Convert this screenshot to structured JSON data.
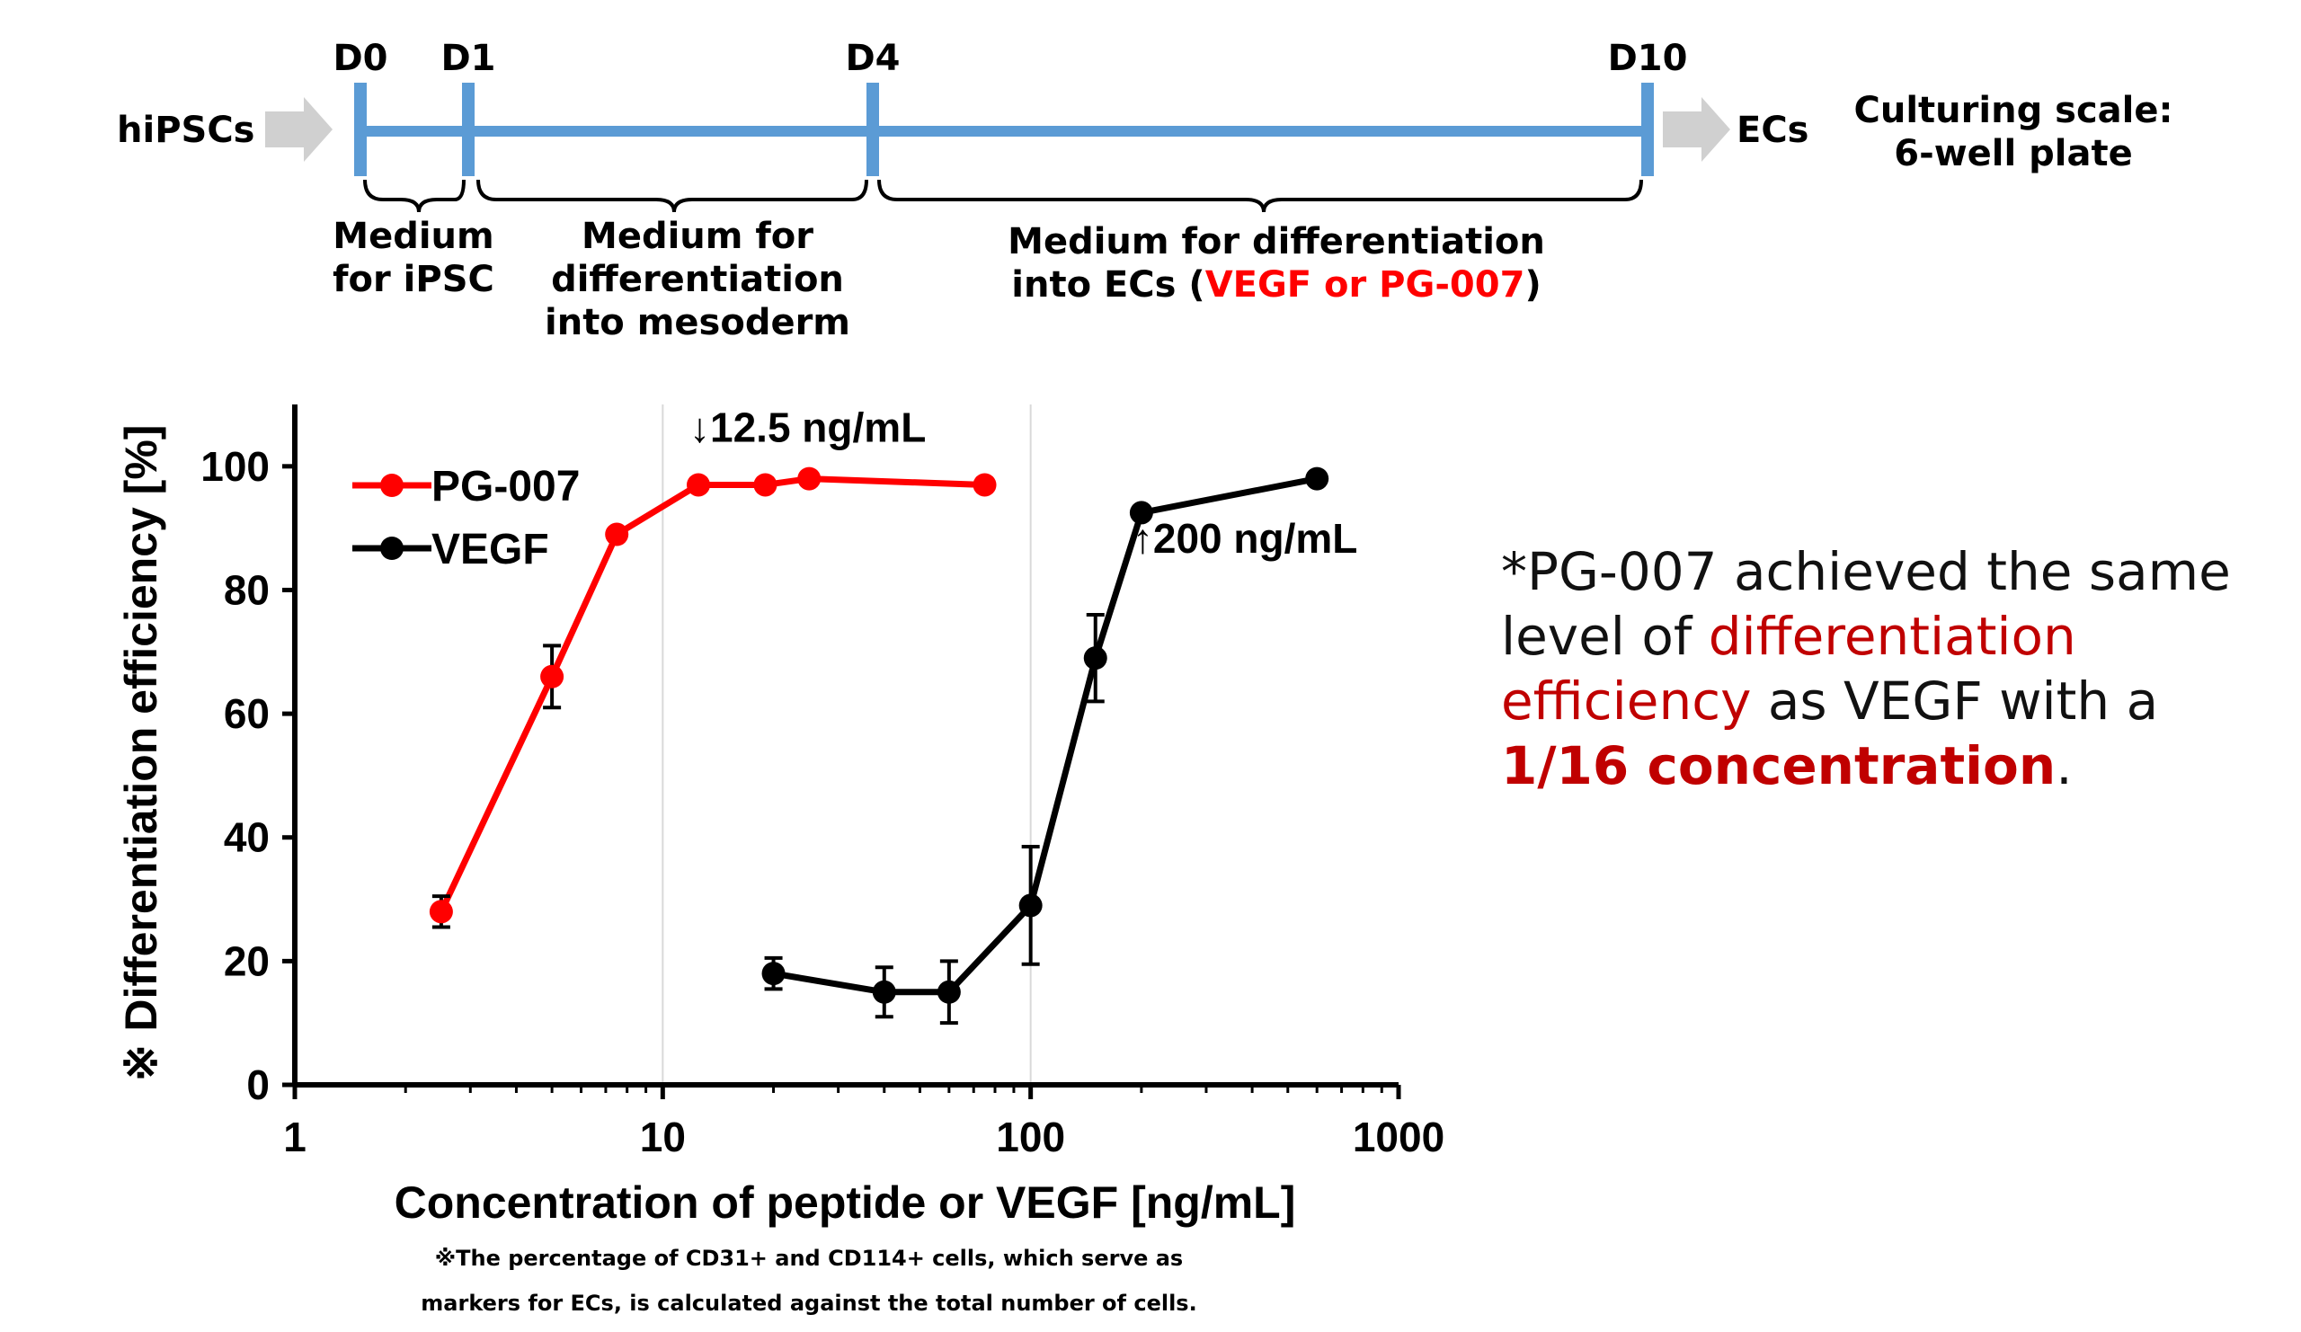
{
  "timeline": {
    "days": [
      "D0",
      "D1",
      "D4",
      "D10"
    ],
    "start": "hiPSCs",
    "end": "ECs",
    "scale_label_1": "Culturing scale:",
    "scale_label_2": "6-well plate",
    "phase1_line1": "Medium",
    "phase1_line2": "for iPSC",
    "phase2_line1": "Medium for",
    "phase2_line2": "differentiation",
    "phase2_line3": "into mesoderm",
    "phase3_line1": "Medium for differentiation",
    "phase3_line2_pre": "into ECs (",
    "phase3_line2_red": "VEGF or PG-007",
    "phase3_line2_post": ")",
    "bar_color": "#5b9bd5",
    "arrow_color": "#d0d0d0"
  },
  "chart_data": {
    "type": "line",
    "xscale": "log",
    "xlim": [
      1,
      1000
    ],
    "ylim": [
      0,
      110
    ],
    "xticks": [
      1,
      10,
      100,
      1000
    ],
    "xtick_labels": [
      "1",
      "10",
      "100",
      "1000"
    ],
    "yticks": [
      0,
      20,
      40,
      60,
      80,
      100
    ],
    "ytick_labels": [
      "0",
      "20",
      "40",
      "60",
      "80",
      "100"
    ],
    "xlabel": "Concentration of peptide or VEGF [ng/mL]",
    "ylabel": "※ Differentiation efficiency  [%]",
    "grid": "vertical at decades",
    "legend_position": "top-left",
    "series": [
      {
        "name": "PG-007",
        "color": "#ff0000",
        "points": [
          {
            "x": 2.5,
            "y": 28,
            "err": 2.5
          },
          {
            "x": 5,
            "y": 66,
            "err": 5
          },
          {
            "x": 7.5,
            "y": 89,
            "err": 0
          },
          {
            "x": 12.5,
            "y": 97,
            "err": 0
          },
          {
            "x": 19,
            "y": 97,
            "err": 0
          },
          {
            "x": 25,
            "y": 98,
            "err": 0
          },
          {
            "x": 75,
            "y": 97,
            "err": 0
          }
        ]
      },
      {
        "name": "VEGF",
        "color": "#000000",
        "points": [
          {
            "x": 20,
            "y": 18,
            "err": 2.5
          },
          {
            "x": 40,
            "y": 15,
            "err": 4
          },
          {
            "x": 60,
            "y": 15,
            "err": 5
          },
          {
            "x": 100,
            "y": 29,
            "err": 9.5
          },
          {
            "x": 150,
            "y": 69,
            "err": 7
          },
          {
            "x": 200,
            "y": 92.5,
            "err": 0
          },
          {
            "x": 600,
            "y": 98,
            "err": 0
          }
        ]
      }
    ],
    "annotations": [
      {
        "text": "↓12.5 ng/mL",
        "x": 12.5,
        "y": 104
      },
      {
        "text": "↑200 ng/mL",
        "x": 200,
        "y": 86
      }
    ]
  },
  "note": {
    "star": "*",
    "p1": "PG-007 achieved the same level of ",
    "p2_red": "differentiation efficiency",
    "p3": " as VEGF with a ",
    "p4_red_bold": "1/16 concentration",
    "p5": "."
  },
  "footnote": {
    "line1": "※The percentage of CD31+ and CD114+ cells, which serve as",
    "line2": "markers for ECs, is calculated against the total number of cells."
  }
}
